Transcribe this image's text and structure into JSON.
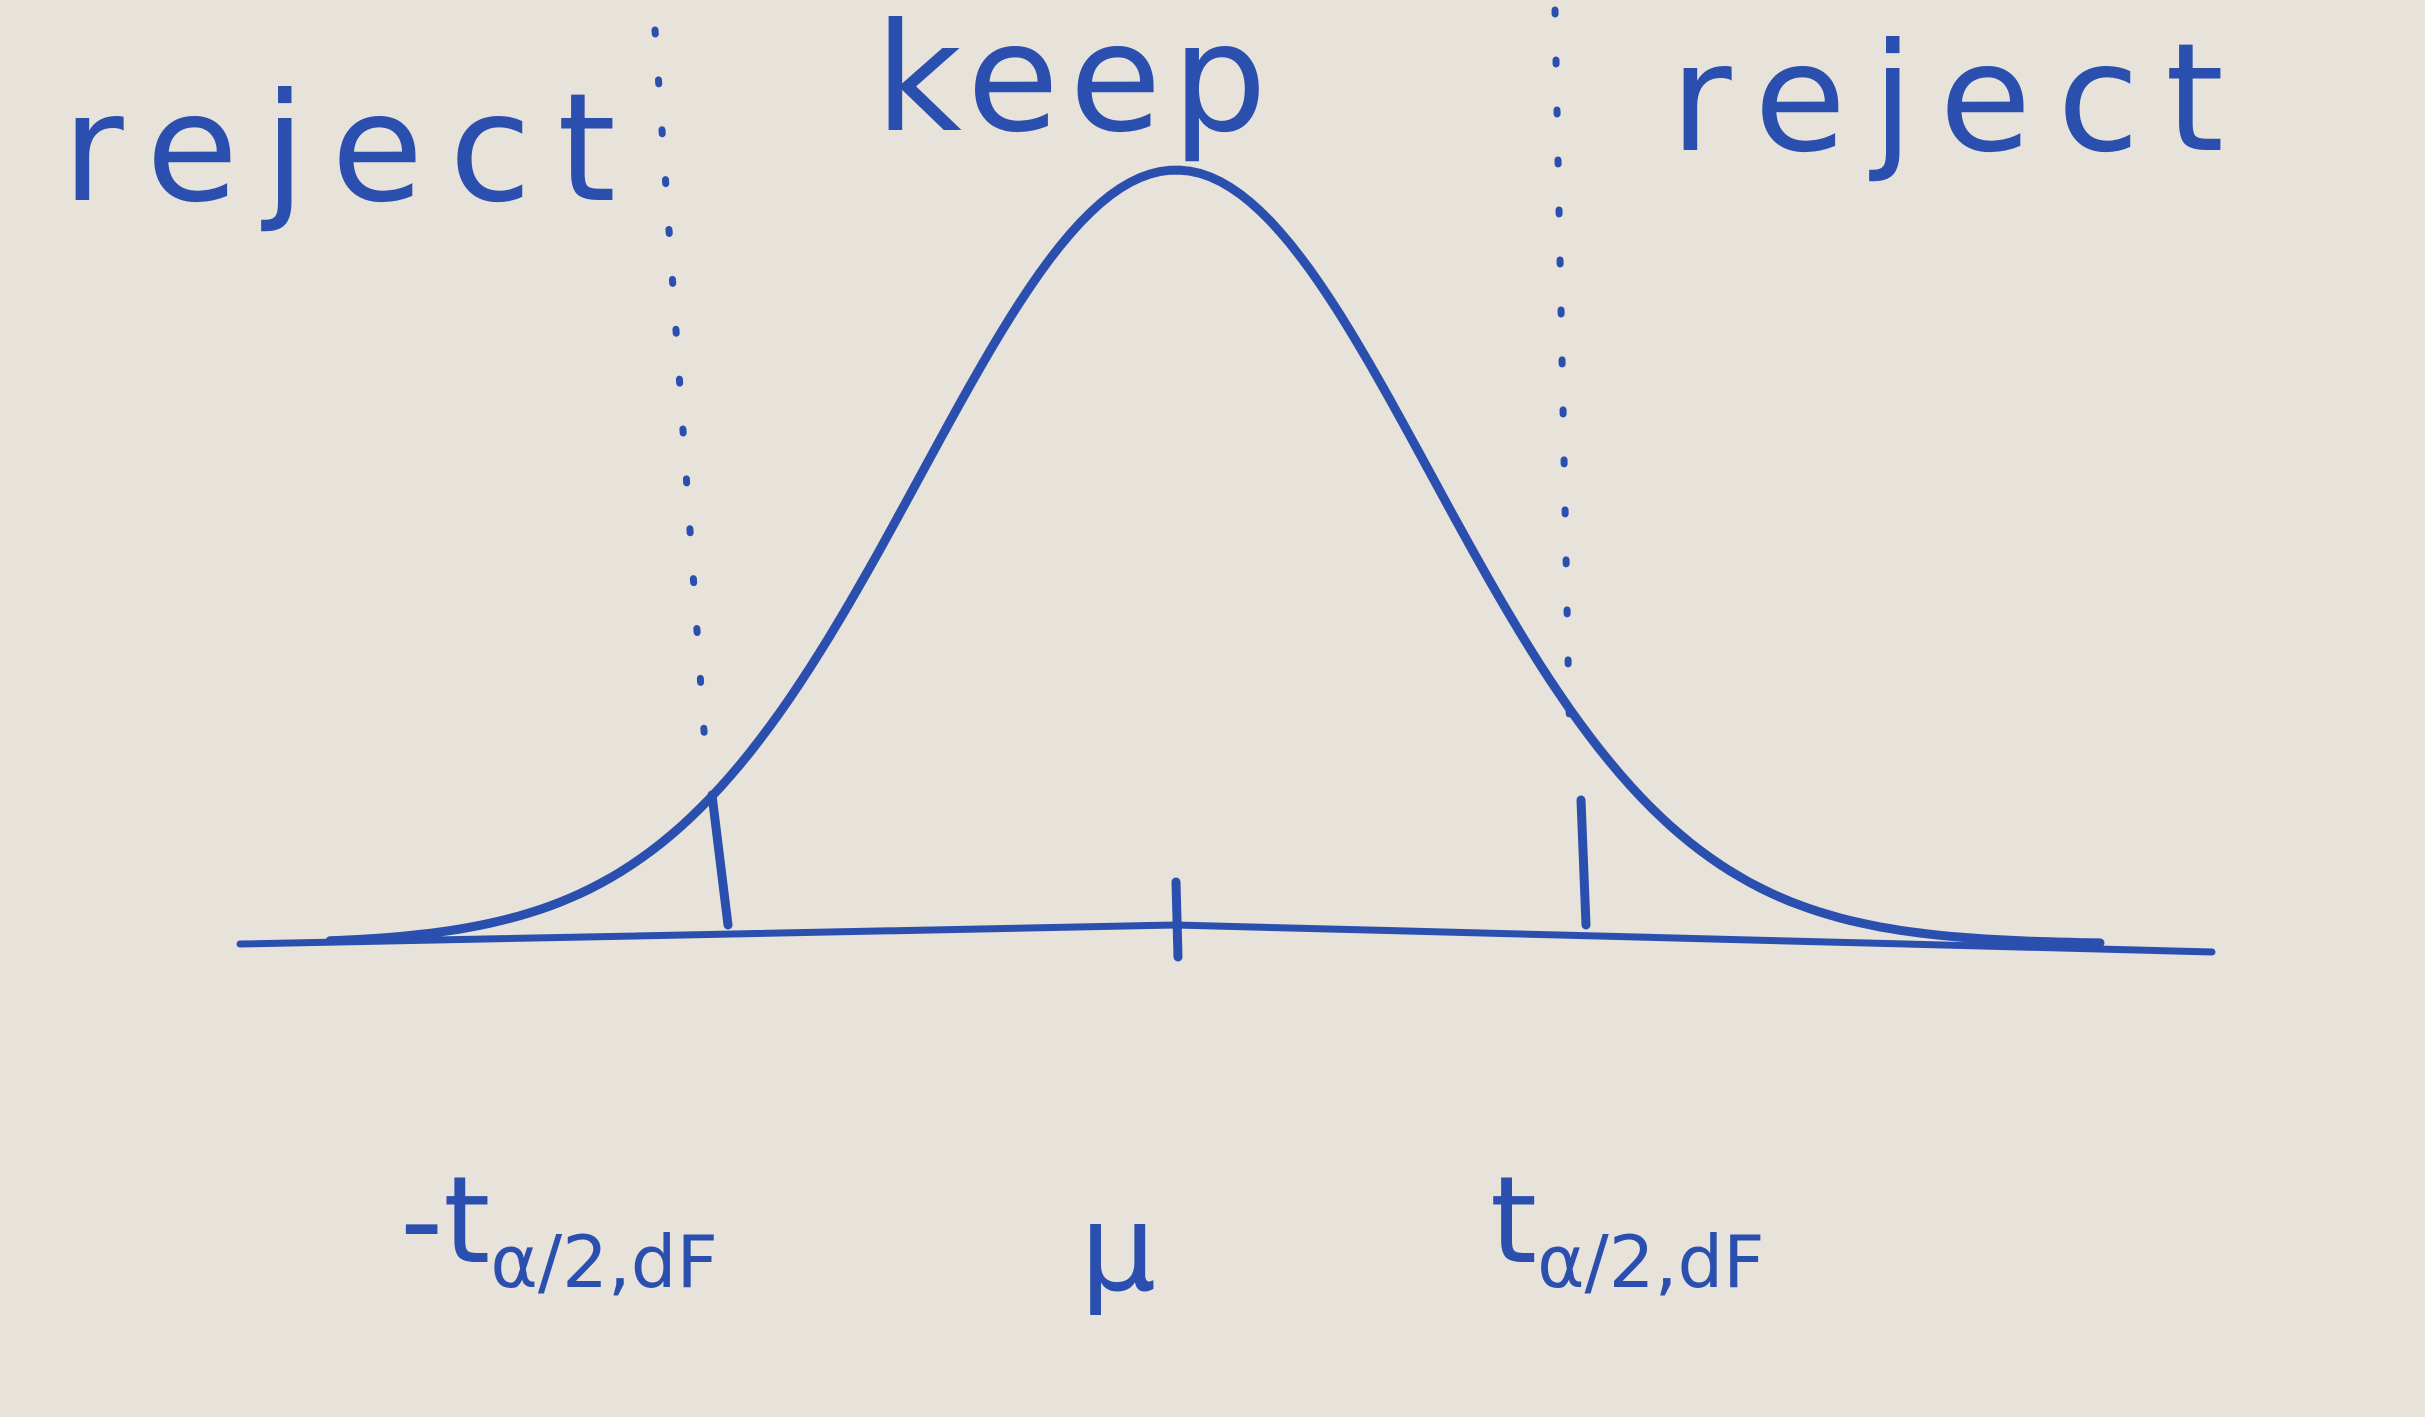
{
  "regions": [
    {
      "label": "reject"
    },
    {
      "label": "keep"
    },
    {
      "label": "reject"
    }
  ],
  "axis_labels": [
    {
      "label": "-t",
      "subscript": "α/2,dF"
    },
    {
      "label": "μ"
    },
    {
      "label": "t",
      "subscript": "α/2,dF"
    }
  ]
}
